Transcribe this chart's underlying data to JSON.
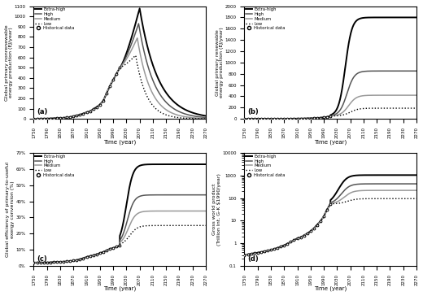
{
  "years_full": [
    1750,
    1760,
    1770,
    1780,
    1790,
    1800,
    1810,
    1820,
    1830,
    1840,
    1850,
    1860,
    1870,
    1880,
    1890,
    1900,
    1910,
    1920,
    1930,
    1940,
    1950,
    1960,
    1970,
    1980,
    1990,
    2000,
    2010,
    2020,
    2030,
    2040,
    2050,
    2060,
    2070,
    2080,
    2090,
    2100,
    2110,
    2120,
    2130,
    2140,
    2150,
    2160,
    2170,
    2180,
    2190,
    2200,
    2210,
    2220,
    2230,
    2240,
    2250,
    2260,
    2270
  ],
  "hist_years": [
    1750,
    1760,
    1770,
    1780,
    1790,
    1800,
    1810,
    1820,
    1830,
    1840,
    1850,
    1860,
    1870,
    1880,
    1890,
    1900,
    1910,
    1920,
    1930,
    1940,
    1950,
    1960,
    1970,
    1980,
    1990,
    2000,
    2010
  ],
  "ylabel_a": "Global primary nonrenewable\nenergy production (EJ/year)",
  "ylabel_b": "Global primary renewable\nenergy production (EJ/year)",
  "ylabel_c": "Global efficiency of primary-to-useful\nexergy conversion (%)",
  "ylabel_d": "Gross world product\n(Trillion Int. G-K $1990/year)",
  "xlabel": "Time (year)",
  "legend_labels": [
    "Extra-high",
    "High",
    "Medium",
    "Low",
    "Historical data"
  ],
  "tick_years": [
    1750,
    1790,
    1830,
    1870,
    1910,
    1950,
    1990,
    2030,
    2070,
    2110,
    2150,
    2190,
    2230,
    2270
  ],
  "panel_labels": [
    "(a)",
    "(b)",
    "(c)",
    "(d)"
  ]
}
